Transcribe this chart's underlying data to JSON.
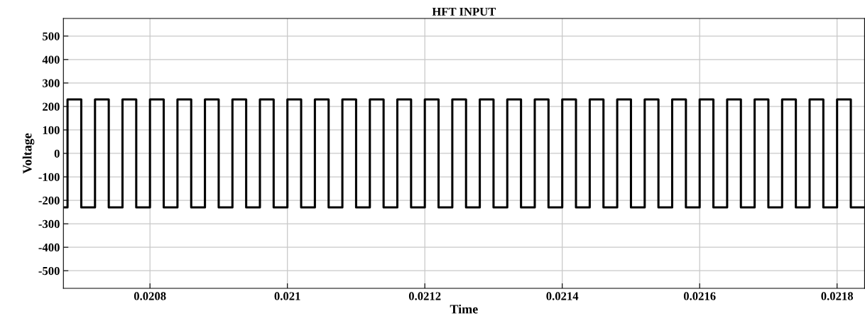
{
  "chart_data": {
    "type": "step",
    "title": "HFT INPUT",
    "xlabel": "Time",
    "ylabel": "Voltage",
    "x": [
      0.020674,
      0.02068,
      0.0207,
      0.02072,
      0.02074,
      0.02076,
      0.02078,
      0.0208,
      0.02082,
      0.02084,
      0.02086,
      0.02088,
      0.0209,
      0.02092,
      0.02094,
      0.02096,
      0.02098,
      0.021,
      0.02102,
      0.02104,
      0.02106,
      0.02108,
      0.0211,
      0.02112,
      0.02114,
      0.02116,
      0.02118,
      0.0212,
      0.02122,
      0.02124,
      0.02126,
      0.02128,
      0.0213,
      0.02132,
      0.02134,
      0.02136,
      0.02138,
      0.0214,
      0.02142,
      0.02144,
      0.02146,
      0.02148,
      0.0215,
      0.02152,
      0.02154,
      0.02156,
      0.02158,
      0.0216,
      0.02162,
      0.02164,
      0.02166,
      0.02168,
      0.0217,
      0.02172,
      0.02174,
      0.02176,
      0.02178,
      0.0218,
      0.02182,
      0.02184
    ],
    "series": [
      {
        "color": "#000000",
        "values": [
          -230,
          230,
          -230,
          230,
          -230,
          230,
          -230,
          230,
          -230,
          230,
          -230,
          230,
          -230,
          230,
          -230,
          230,
          -230,
          230,
          -230,
          230,
          -230,
          230,
          -230,
          230,
          -230,
          230,
          -230,
          230,
          -230,
          230,
          -230,
          230,
          -230,
          230,
          -230,
          230,
          -230,
          230,
          -230,
          230,
          -230,
          230,
          -230,
          230,
          -230,
          230,
          -230,
          230,
          -230,
          230,
          -230,
          230,
          -230,
          230,
          -230,
          230,
          -230,
          230,
          -230,
          -230
        ]
      }
    ],
    "xlim": [
      0.020674,
      0.02184
    ],
    "xticks": [
      0.0208,
      0.021,
      0.0212,
      0.0214,
      0.0216,
      0.0218
    ],
    "ylim": [
      -575,
      575
    ],
    "yticks": [
      -500,
      -400,
      -300,
      -200,
      -100,
      0,
      100,
      200,
      300,
      400,
      500
    ],
    "grid": true,
    "marker": "none",
    "line_style": "solid"
  }
}
